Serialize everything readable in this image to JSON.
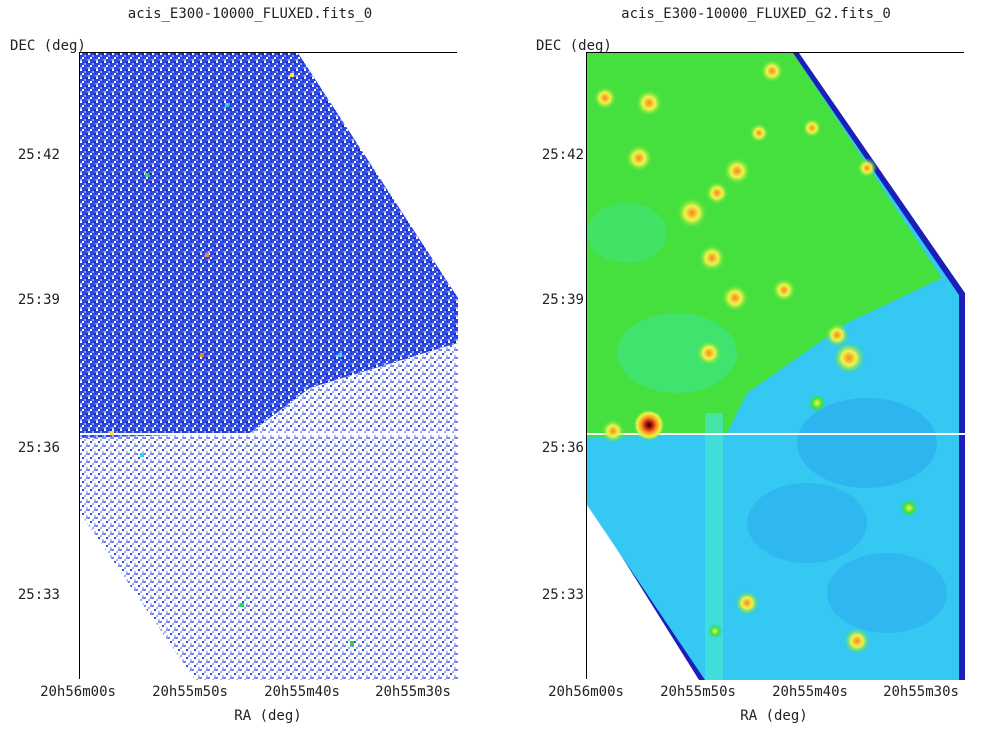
{
  "panels": [
    {
      "title": "acis_E300-10000_FLUXED.fits_0",
      "y_axis_label": "DEC  (deg)",
      "x_axis_label": "RA  (deg)",
      "y_ticks": [
        "25:42",
        "25:39",
        "25:36",
        "25:33"
      ],
      "x_ticks": [
        "20h56m00s",
        "20h55m50s",
        "20h55m40s",
        "20h55m30s"
      ],
      "colormap": "raw counts (blue noise)"
    },
    {
      "title": "acis_E300-10000_FLUXED_G2.fits_0",
      "y_axis_label": "DEC  (deg)",
      "x_axis_label": "RA  (deg)",
      "y_ticks": [
        "25:42",
        "25:39",
        "25:36",
        "25:33"
      ],
      "x_ticks": [
        "20h56m00s",
        "20h55m50s",
        "20h55m40s",
        "20h55m30s"
      ],
      "colormap": "gaussian smoothed (green/cyan)"
    }
  ],
  "colors": {
    "blue_dark": "#1a2fd8",
    "blue_light": "#7d8ef0",
    "green": "#3ee03a",
    "cyan": "#2ad0f5",
    "yellow": "#f3f54a",
    "orange": "#f5a020"
  }
}
